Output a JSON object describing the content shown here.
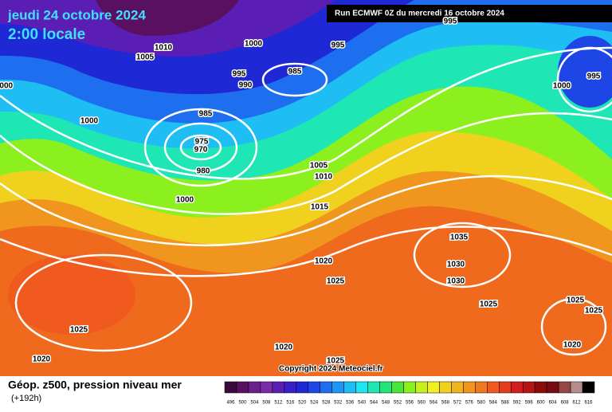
{
  "header": {
    "date": "jeudi 24 octobre 2024",
    "time": "2:00 locale",
    "run": "Run ECMWF 0Z du mercredi 16 octobre 2024"
  },
  "isobar_labels": [
    "1010",
    "1005",
    "1000",
    "995",
    "995",
    "990",
    "985",
    "985",
    "975",
    "970",
    "980",
    "1000",
    "1000",
    "1000",
    "1005",
    "1010",
    "1015",
    "1020",
    "1025",
    "1035",
    "1030",
    "1030",
    "1025",
    "1025",
    "1020",
    "1020",
    "1025",
    "1000",
    "995",
    "1025",
    "1025",
    "1020",
    "995"
  ],
  "copyright": "Copyright 2024 Meteociel.fr",
  "footer": {
    "title": "Géop. z500, pression niveau mer",
    "lead": "(+192h)"
  },
  "legend": {
    "labels": [
      "496",
      "500",
      "504",
      "508",
      "512",
      "516",
      "520",
      "524",
      "528",
      "532",
      "536",
      "540",
      "544",
      "548",
      "552",
      "556",
      "560",
      "564",
      "568",
      "572",
      "576",
      "580",
      "584",
      "588",
      "592",
      "596",
      "600",
      "604",
      "608",
      "612",
      "616"
    ],
    "colors": [
      "#3a0a3a",
      "#5a1060",
      "#6e1e8c",
      "#7a2ca8",
      "#5a1eb4",
      "#3a1ec8",
      "#1e28d4",
      "#1e46e6",
      "#1e6ef0",
      "#1e96f5",
      "#1ebef5",
      "#1ee6f0",
      "#1ee6b4",
      "#1ee678",
      "#46e63c",
      "#8cf01e",
      "#c8f01e",
      "#f0f01e",
      "#f0d21e",
      "#f0b41e",
      "#f0961e",
      "#f0781e",
      "#f05a1e",
      "#e63c1e",
      "#d21e1e",
      "#b41414",
      "#8c0a0a",
      "#780a14",
      "#964646",
      "#b48c8c",
      "#000000"
    ]
  }
}
